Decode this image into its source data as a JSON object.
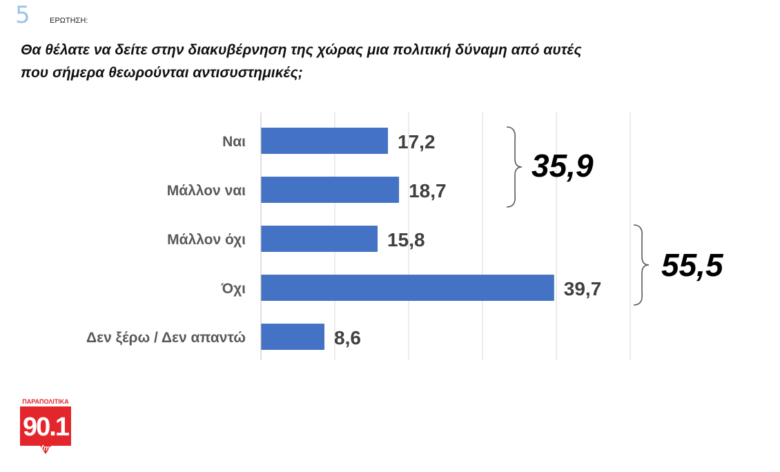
{
  "header": {
    "question_number": "5",
    "question_label": "ΕΡΩΤΗΣΗ:",
    "question_line1": "Θα θέλατε να δείτε στην διακυβέρνηση της χώρας μια πολιτική δύναμη από αυτές",
    "question_line2": "που σήμερα θεωρούνται αντισυστημικές;"
  },
  "chart_data": {
    "type": "bar",
    "orientation": "horizontal",
    "categories": [
      "Ναι",
      "Μάλλον ναι",
      "Μάλλον όχι",
      "Όχι",
      "Δεν ξέρω / Δεν απαντώ"
    ],
    "values": [
      17.2,
      18.7,
      15.8,
      39.7,
      8.6
    ],
    "value_labels": [
      "17,2",
      "18,7",
      "15,8",
      "39,7",
      "8,6"
    ],
    "xlim": [
      0,
      50
    ],
    "grid": true,
    "bar_color": "#4472c4",
    "groups": [
      {
        "label": "35,9",
        "categories": [
          "Ναι",
          "Μάλλον ναι"
        ]
      },
      {
        "label": "55,5",
        "categories": [
          "Μάλλον όχι",
          "Όχι"
        ]
      }
    ]
  },
  "logo": {
    "brand": "ΠΑΡΑΠΟΛΙΤΙΚΑ",
    "frequency": "90.1",
    "band": "fm",
    "color": "#e3262b"
  }
}
